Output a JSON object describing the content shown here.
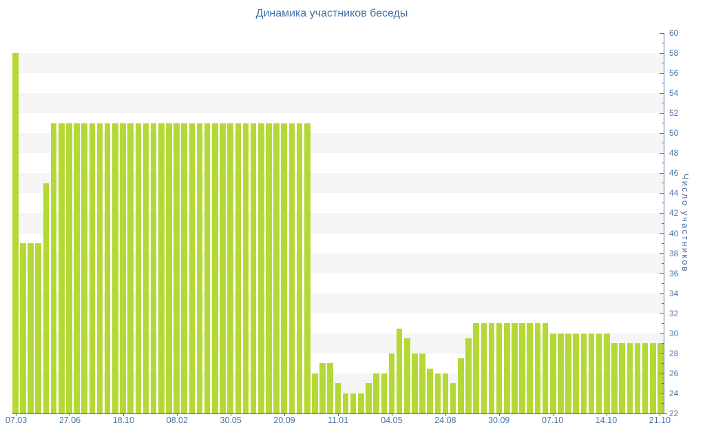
{
  "title": "Динамика участников беседы",
  "y_axis": {
    "title": "Число участников",
    "min": 22,
    "max": 60,
    "label_step": 2
  },
  "chart_data": {
    "type": "bar",
    "title": "Динамика участников беседы",
    "xlabel": "",
    "ylabel": "Число участников",
    "ylim": [
      22,
      60
    ],
    "y_tick_step": 2,
    "grid": "alternating-bands",
    "legend": false,
    "bar_color": "#b5d934",
    "band_color": "#f5f5f5",
    "axis_color": "#5a6a8f",
    "label_color": "#4572a7",
    "values": [
      58,
      39,
      39,
      39,
      45,
      51,
      51,
      51,
      51,
      51,
      51,
      51,
      51,
      51,
      51,
      51,
      51,
      51,
      51,
      51,
      51,
      51,
      51,
      51,
      51,
      51,
      51,
      51,
      51,
      51,
      51,
      51,
      51,
      51,
      51,
      51,
      51,
      51,
      51,
      26,
      27,
      27,
      25,
      24,
      24,
      24,
      25,
      26,
      26,
      28,
      30.5,
      29.5,
      28,
      28,
      26.5,
      26,
      26,
      25,
      27.5,
      29.5,
      31,
      31,
      31,
      31,
      31,
      31,
      31,
      31,
      31,
      31,
      30,
      30,
      30,
      30,
      30,
      30,
      30,
      30,
      29,
      29,
      29,
      29,
      29,
      29,
      29
    ],
    "tick_labels": [
      "07.03",
      "27.06",
      "18.10",
      "08.02",
      "30.05",
      "20.09",
      "11.01",
      "04.05",
      "24.08",
      "30.09",
      "07.10",
      "14.10",
      "21.10"
    ],
    "tick_bar_positions": [
      1,
      8,
      15,
      22,
      29,
      36,
      43,
      50,
      57,
      64,
      71,
      78,
      85
    ]
  }
}
